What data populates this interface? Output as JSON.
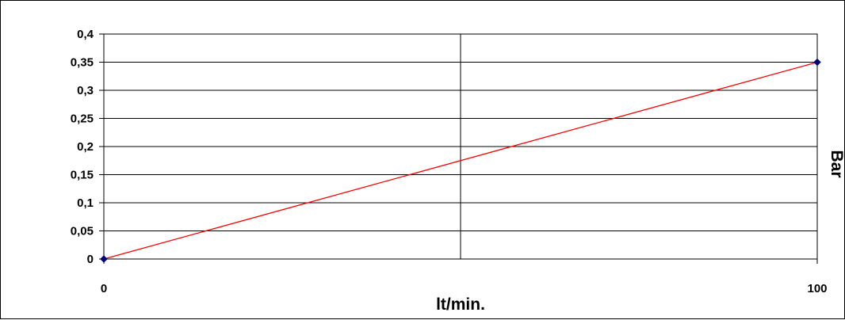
{
  "chart_data": {
    "type": "line",
    "title": "",
    "xlabel": "lt/min.",
    "ylabel": "Bar",
    "x_tick_labels": [
      "0",
      "100"
    ],
    "y_tick_labels": [
      "0",
      "0,05",
      "0,1",
      "0,15",
      "0,2",
      "0,25",
      "0,3",
      "0,35",
      "0,4"
    ],
    "xlim": [
      0,
      100
    ],
    "ylim": [
      0,
      0.4
    ],
    "grid": true,
    "legend": "none",
    "series": [
      {
        "x": [
          0,
          100
        ],
        "values": [
          0,
          0.35
        ],
        "color": "#ff0000",
        "marker_color": "#000080"
      }
    ]
  }
}
